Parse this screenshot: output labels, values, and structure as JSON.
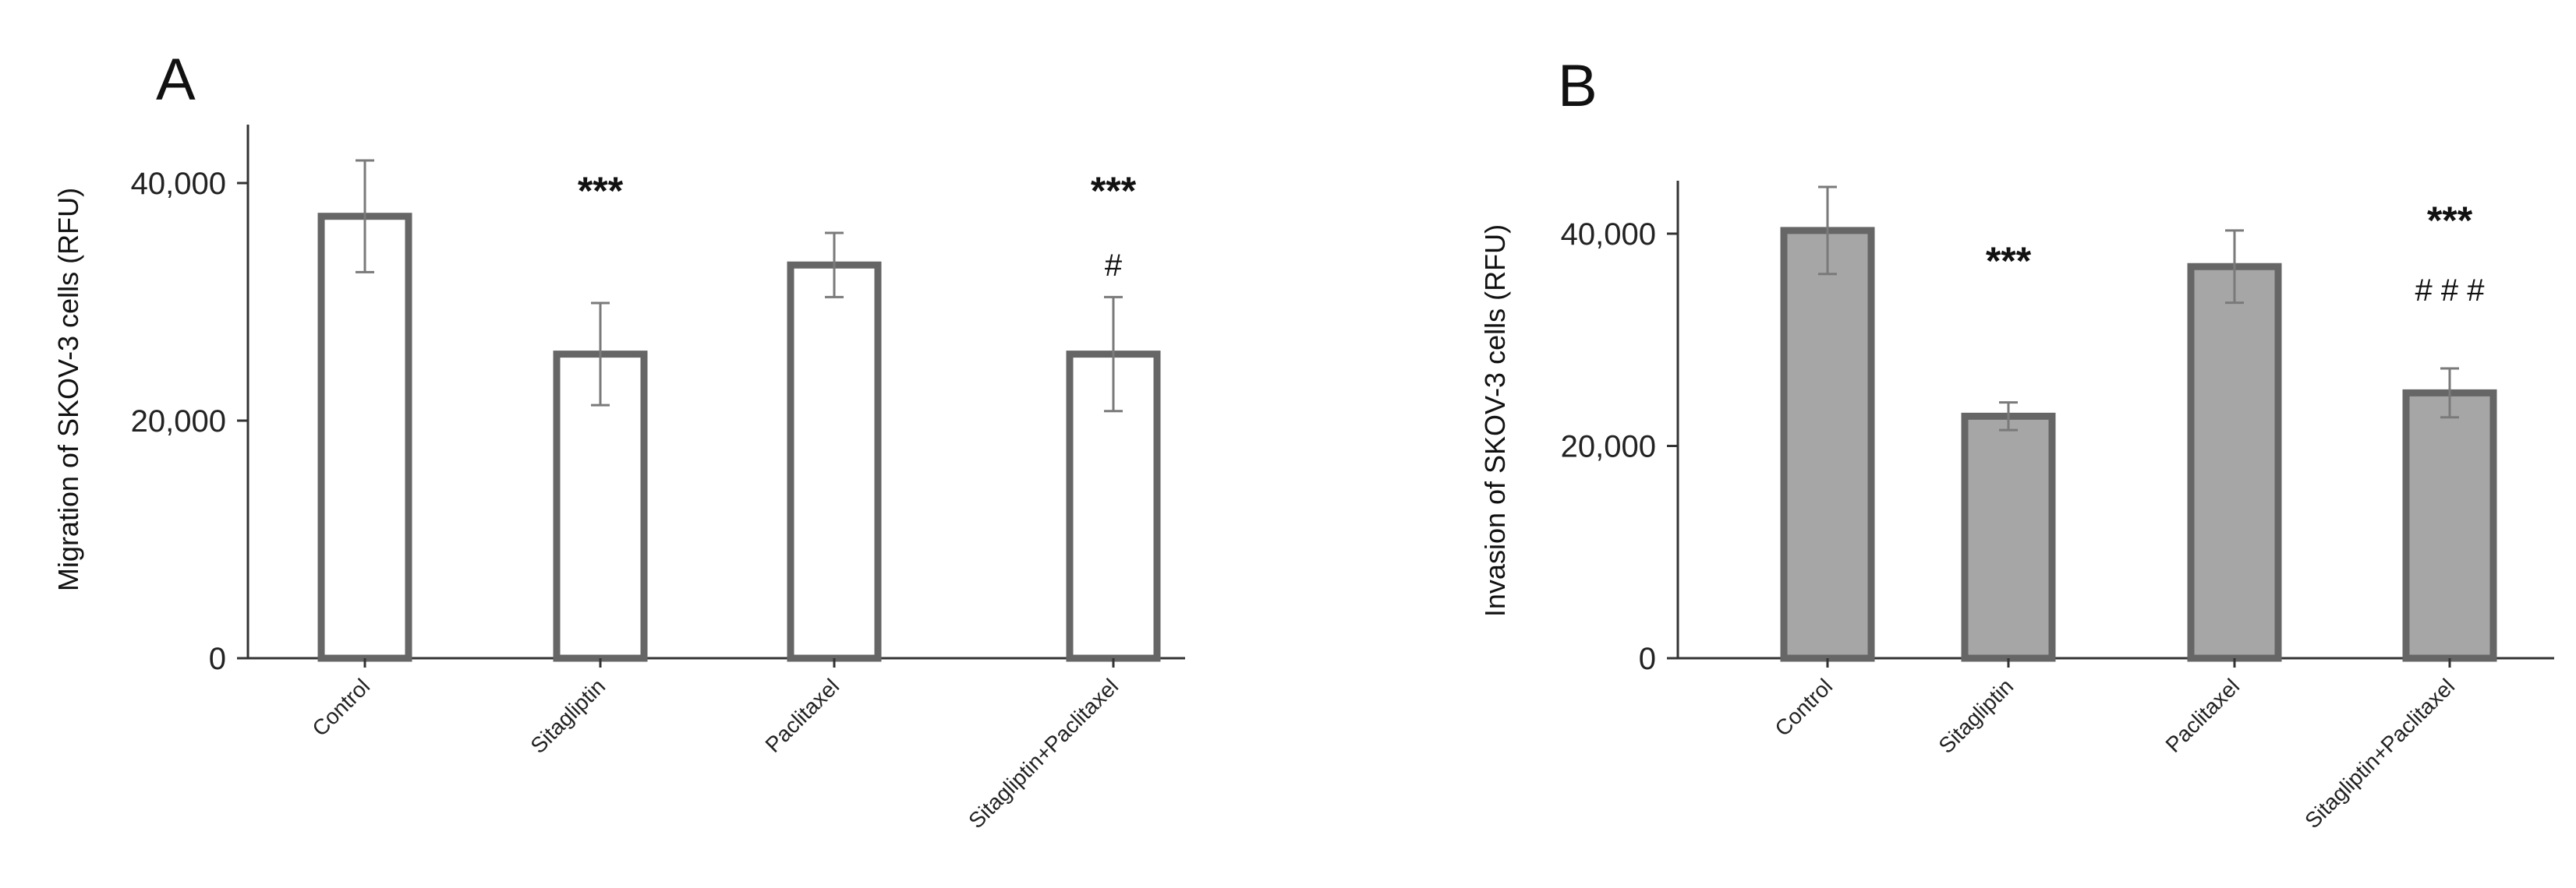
{
  "chart_data": [
    {
      "type": "bar",
      "panel": "A",
      "ylabel": "Migration of SKOV-3 cells (RFU)",
      "ylim": [
        0,
        45000
      ],
      "yticks": [
        0,
        20000,
        40000
      ],
      "ytick_labels": [
        "0",
        "20,000",
        "40,000"
      ],
      "categories": [
        "Control",
        "Sitagliptin",
        "Paclitaxel",
        "Sitagliptin+Paclitaxel"
      ],
      "values": [
        37200,
        25600,
        33100,
        25600
      ],
      "errors": [
        4700,
        4300,
        2700,
        4800
      ],
      "annotations": [
        "",
        "***",
        "",
        "***\n#"
      ],
      "bar_fill": "#ffffff",
      "bar_stroke": "#666666",
      "grid": false
    },
    {
      "type": "bar",
      "panel": "B",
      "ylabel": "Invasion of SKOV-3 cells (RFU)",
      "ylim": [
        0,
        45000
      ],
      "yticks": [
        0,
        20000,
        40000
      ],
      "ytick_labels": [
        "0",
        "20,000",
        "40,000"
      ],
      "categories": [
        "Control",
        "Sitagliptin",
        "Paclitaxel",
        "Sitagliptin+Paclitaxel"
      ],
      "values": [
        40300,
        22800,
        36900,
        25000
      ],
      "errors": [
        4100,
        1300,
        3400,
        2300
      ],
      "annotations": [
        "",
        "***",
        "",
        "***\n# # #"
      ],
      "bar_fill": "#a6a6a6",
      "bar_stroke": "#666666",
      "grid": false
    }
  ]
}
